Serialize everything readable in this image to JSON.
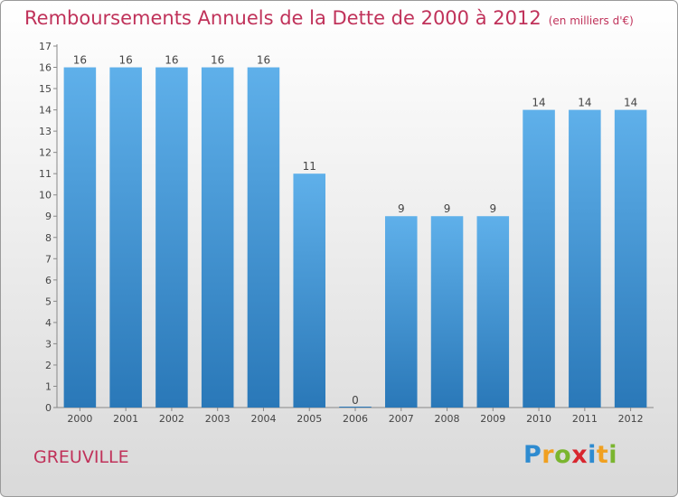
{
  "title": "Remboursements Annuels de la Dette de 2000 à 2012",
  "unit_label": "(en milliers d'€)",
  "city": "GREUVILLE",
  "logo": {
    "letters": [
      "P",
      "r",
      "o",
      "x",
      "i",
      "t",
      "i"
    ],
    "colors": [
      "#2e8bd0",
      "#f0a020",
      "#7ab52f",
      "#d8262e",
      "#2e8bd0",
      "#f0a020",
      "#7ab52f"
    ]
  },
  "colors": {
    "accent": "#c0325a",
    "bar_light": "#5fb0ea",
    "bar_dark": "#2a78b8"
  },
  "chart_data": {
    "type": "bar",
    "title": "Remboursements Annuels de la Dette de 2000 à 2012",
    "categories": [
      "2000",
      "2001",
      "2002",
      "2003",
      "2004",
      "2005",
      "2006",
      "2007",
      "2008",
      "2009",
      "2010",
      "2011",
      "2012"
    ],
    "values": [
      16,
      16,
      16,
      16,
      16,
      11,
      0,
      9,
      9,
      9,
      14,
      14,
      14
    ],
    "xlabel": "",
    "ylabel": "",
    "ylim": [
      0,
      17
    ],
    "yticks": [
      0,
      1,
      2,
      3,
      4,
      5,
      6,
      7,
      8,
      9,
      10,
      11,
      12,
      13,
      14,
      15,
      16,
      17
    ],
    "grid": false,
    "legend": "none"
  }
}
